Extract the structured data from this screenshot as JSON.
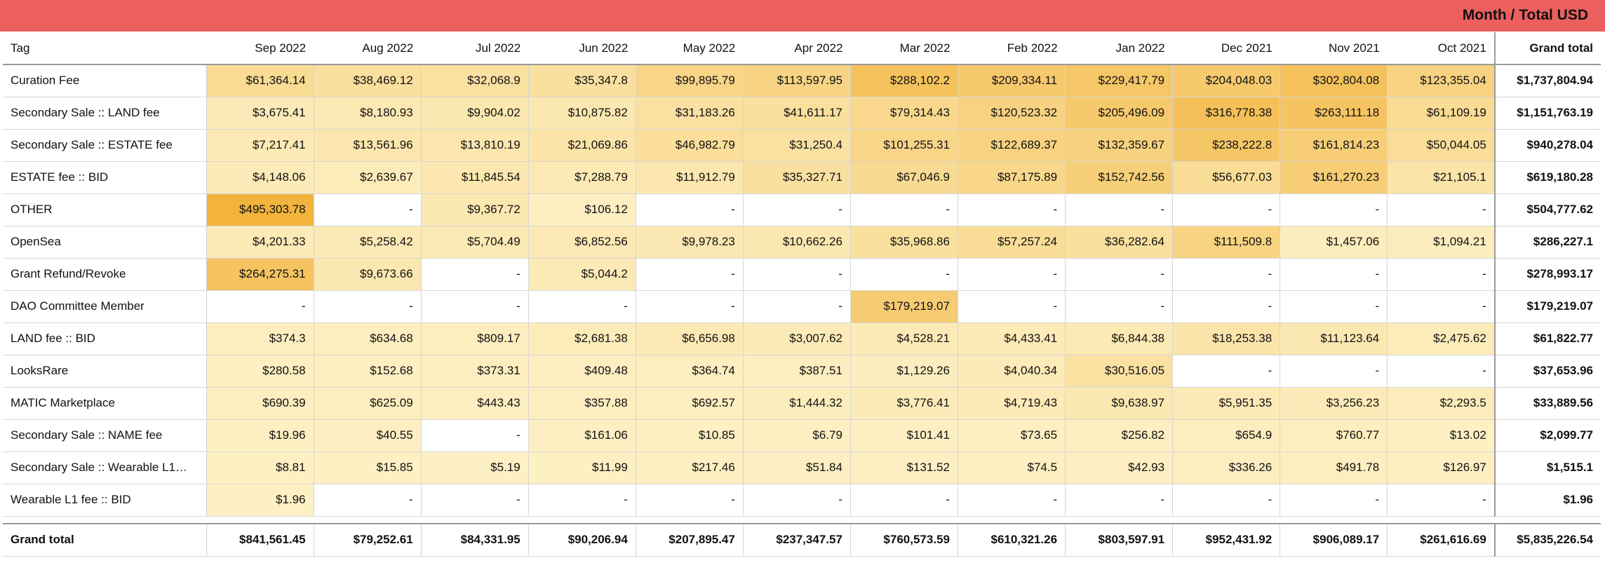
{
  "chart_data": {
    "type": "table",
    "title": "Month / Total USD",
    "row_header": "Tag",
    "columns": [
      "Sep 2022",
      "Aug 2022",
      "Jul 2022",
      "Jun 2022",
      "May 2022",
      "Apr 2022",
      "Mar 2022",
      "Feb 2022",
      "Jan 2022",
      "Dec 2021",
      "Nov 2021",
      "Oct 2021"
    ],
    "grand_total_label": "Grand total",
    "rows": [
      {
        "tag": "Curation Fee",
        "values": [
          "$61,364.14",
          "$38,469.12",
          "$32,068.9",
          "$35,347.8",
          "$99,895.79",
          "$113,597.95",
          "$288,102.2",
          "$209,334.11",
          "$229,417.79",
          "$204,048.03",
          "$302,804.08",
          "$123,355.04"
        ],
        "total": "$1,737,804.94"
      },
      {
        "tag": "Secondary Sale :: LAND fee",
        "values": [
          "$3,675.41",
          "$8,180.93",
          "$9,904.02",
          "$10,875.82",
          "$31,183.26",
          "$41,611.17",
          "$79,314.43",
          "$120,523.32",
          "$205,496.09",
          "$316,778.38",
          "$263,111.18",
          "$61,109.19"
        ],
        "total": "$1,151,763.19"
      },
      {
        "tag": "Secondary Sale :: ESTATE fee",
        "values": [
          "$7,217.41",
          "$13,561.96",
          "$13,810.19",
          "$21,069.86",
          "$46,982.79",
          "$31,250.4",
          "$101,255.31",
          "$122,689.37",
          "$132,359.67",
          "$238,222.8",
          "$161,814.23",
          "$50,044.05"
        ],
        "total": "$940,278.04"
      },
      {
        "tag": "ESTATE fee :: BID",
        "values": [
          "$4,148.06",
          "$2,639.67",
          "$11,845.54",
          "$7,288.79",
          "$11,912.79",
          "$35,327.71",
          "$67,046.9",
          "$87,175.89",
          "$152,742.56",
          "$56,677.03",
          "$161,270.23",
          "$21,105.1"
        ],
        "total": "$619,180.28"
      },
      {
        "tag": "OTHER",
        "values": [
          "$495,303.78",
          "-",
          "$9,367.72",
          "$106.12",
          "-",
          "-",
          "-",
          "-",
          "-",
          "-",
          "-",
          "-"
        ],
        "total": "$504,777.62"
      },
      {
        "tag": "OpenSea",
        "values": [
          "$4,201.33",
          "$5,258.42",
          "$5,704.49",
          "$6,852.56",
          "$9,978.23",
          "$10,662.26",
          "$35,968.86",
          "$57,257.24",
          "$36,282.64",
          "$111,509.8",
          "$1,457.06",
          "$1,094.21"
        ],
        "total": "$286,227.1"
      },
      {
        "tag": "Grant Refund/Revoke",
        "values": [
          "$264,275.31",
          "$9,673.66",
          "-",
          "$5,044.2",
          "-",
          "-",
          "-",
          "-",
          "-",
          "-",
          "-",
          "-"
        ],
        "total": "$278,993.17"
      },
      {
        "tag": "DAO Committee Member",
        "values": [
          "-",
          "-",
          "-",
          "-",
          "-",
          "-",
          "$179,219.07",
          "-",
          "-",
          "-",
          "-",
          "-"
        ],
        "total": "$179,219.07"
      },
      {
        "tag": "LAND fee :: BID",
        "values": [
          "$374.3",
          "$634.68",
          "$809.17",
          "$2,681.38",
          "$6,656.98",
          "$3,007.62",
          "$4,528.21",
          "$4,433.41",
          "$6,844.38",
          "$18,253.38",
          "$11,123.64",
          "$2,475.62"
        ],
        "total": "$61,822.77"
      },
      {
        "tag": "LooksRare",
        "values": [
          "$280.58",
          "$152.68",
          "$373.31",
          "$409.48",
          "$364.74",
          "$387.51",
          "$1,129.26",
          "$4,040.34",
          "$30,516.05",
          "-",
          "-",
          "-"
        ],
        "total": "$37,653.96"
      },
      {
        "tag": "MATIC Marketplace",
        "values": [
          "$690.39",
          "$625.09",
          "$443.43",
          "$357.88",
          "$692.57",
          "$1,444.32",
          "$3,776.41",
          "$4,719.43",
          "$9,638.97",
          "$5,951.35",
          "$3,256.23",
          "$2,293.5"
        ],
        "total": "$33,889.56"
      },
      {
        "tag": "Secondary Sale :: NAME fee",
        "values": [
          "$19.96",
          "$40.55",
          "-",
          "$161.06",
          "$10.85",
          "$6.79",
          "$101.41",
          "$73.65",
          "$256.82",
          "$654.9",
          "$760.77",
          "$13.02"
        ],
        "total": "$2,099.77"
      },
      {
        "tag": "Secondary Sale :: Wearable L1…",
        "values": [
          "$8.81",
          "$15.85",
          "$5.19",
          "$11.99",
          "$217.46",
          "$51.84",
          "$131.52",
          "$74.5",
          "$42.93",
          "$336.26",
          "$491.78",
          "$126.97"
        ],
        "total": "$1,515.1"
      },
      {
        "tag": "Wearable L1 fee :: BID",
        "values": [
          "$1.96",
          "-",
          "-",
          "-",
          "-",
          "-",
          "-",
          "-",
          "-",
          "-",
          "-",
          "-"
        ],
        "total": "$1.96"
      }
    ],
    "grand_total_row": {
      "values": [
        "$841,561.45",
        "$79,252.61",
        "$84,331.95",
        "$90,206.94",
        "$207,895.47",
        "$237,347.57",
        "$760,573.59",
        "$610,321.26",
        "$803,597.91",
        "$952,431.92",
        "$906,089.17",
        "$261,616.69"
      ],
      "total": "$5,835,226.54"
    },
    "heatmap_colors": {
      "low": "#fdf0c4",
      "high": "#f5c85a",
      "peak": "#f2b43c"
    }
  }
}
